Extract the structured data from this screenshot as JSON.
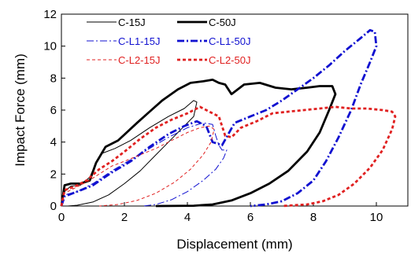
{
  "chart_data": {
    "type": "line",
    "xlabel": "Displacement (mm)",
    "ylabel": "Impact Force (mm)",
    "xlim": [
      0,
      11
    ],
    "ylim": [
      0,
      12
    ],
    "xticks": [
      0,
      2,
      4,
      6,
      8,
      10
    ],
    "yticks": [
      0,
      2,
      4,
      6,
      8,
      10,
      12
    ],
    "grid": false,
    "legend_placement": "top-left",
    "series": [
      {
        "name": "C-15J",
        "color": "#000000",
        "dash": "solid",
        "width": "thin",
        "points": [
          [
            0,
            0
          ],
          [
            0.1,
            0.9
          ],
          [
            0.3,
            1.25
          ],
          [
            0.6,
            1.3
          ],
          [
            0.9,
            1.8
          ],
          [
            1.1,
            2.7
          ],
          [
            1.3,
            3.3
          ],
          [
            1.7,
            3.6
          ],
          [
            2.2,
            4.1
          ],
          [
            2.8,
            4.9
          ],
          [
            3.4,
            5.6
          ],
          [
            3.9,
            6.1
          ],
          [
            4.2,
            6.6
          ],
          [
            4.3,
            6.5
          ],
          [
            4.2,
            5.6
          ],
          [
            3.9,
            5.0
          ],
          [
            3.4,
            4.0
          ],
          [
            3.0,
            3.2
          ],
          [
            2.5,
            2.2
          ],
          [
            2.0,
            1.4
          ],
          [
            1.5,
            0.7
          ],
          [
            1.0,
            0.25
          ],
          [
            0.5,
            0.05
          ],
          [
            0.2,
            0
          ]
        ]
      },
      {
        "name": "C-50J",
        "color": "#000000",
        "dash": "solid",
        "width": "thick",
        "points": [
          [
            0,
            0
          ],
          [
            0.1,
            1.3
          ],
          [
            0.3,
            1.4
          ],
          [
            0.6,
            1.4
          ],
          [
            0.9,
            1.6
          ],
          [
            1.1,
            2.7
          ],
          [
            1.4,
            3.7
          ],
          [
            1.8,
            4.1
          ],
          [
            2.4,
            5.2
          ],
          [
            2.8,
            5.9
          ],
          [
            3.2,
            6.6
          ],
          [
            3.7,
            7.3
          ],
          [
            4.1,
            7.7
          ],
          [
            4.5,
            7.8
          ],
          [
            4.8,
            7.9
          ],
          [
            5.0,
            7.7
          ],
          [
            5.2,
            7.6
          ],
          [
            5.4,
            7.0
          ],
          [
            5.8,
            7.6
          ],
          [
            6.3,
            7.7
          ],
          [
            6.8,
            7.4
          ],
          [
            7.3,
            7.3
          ],
          [
            7.8,
            7.4
          ],
          [
            8.2,
            7.5
          ],
          [
            8.6,
            7.5
          ],
          [
            8.7,
            7.0
          ],
          [
            8.5,
            6.0
          ],
          [
            8.2,
            4.6
          ],
          [
            7.8,
            3.4
          ],
          [
            7.2,
            2.2
          ],
          [
            6.6,
            1.4
          ],
          [
            6.0,
            0.8
          ],
          [
            5.4,
            0.35
          ],
          [
            4.8,
            0.1
          ],
          [
            4.2,
            0.02
          ],
          [
            3.0,
            0
          ]
        ]
      },
      {
        "name": "C-L1-15J",
        "color": "#1010d0",
        "dash": "dashdot",
        "width": "thin",
        "points": [
          [
            0,
            0
          ],
          [
            0.1,
            0.7
          ],
          [
            0.5,
            0.9
          ],
          [
            1.0,
            1.4
          ],
          [
            1.6,
            2.2
          ],
          [
            2.2,
            2.9
          ],
          [
            2.8,
            3.6
          ],
          [
            3.4,
            4.3
          ],
          [
            4.0,
            4.9
          ],
          [
            4.5,
            5.2
          ],
          [
            4.8,
            5.1
          ],
          [
            4.9,
            4.4
          ],
          [
            5.0,
            3.8
          ],
          [
            5.1,
            3.5
          ],
          [
            5.25,
            3.5
          ],
          [
            5.15,
            3.0
          ],
          [
            4.9,
            2.3
          ],
          [
            4.5,
            1.6
          ],
          [
            4.0,
            0.9
          ],
          [
            3.5,
            0.4
          ],
          [
            3.0,
            0.1
          ],
          [
            2.6,
            0
          ]
        ]
      },
      {
        "name": "C-L1-50J",
        "color": "#1010d0",
        "dash": "dashdot",
        "width": "thick",
        "points": [
          [
            0,
            0
          ],
          [
            0.1,
            0.6
          ],
          [
            0.5,
            0.9
          ],
          [
            1.0,
            1.3
          ],
          [
            1.6,
            2.1
          ],
          [
            2.2,
            2.8
          ],
          [
            2.8,
            3.7
          ],
          [
            3.4,
            4.5
          ],
          [
            3.9,
            5.0
          ],
          [
            4.3,
            5.3
          ],
          [
            4.6,
            5.0
          ],
          [
            4.8,
            4.0
          ],
          [
            5.1,
            3.8
          ],
          [
            5.3,
            4.5
          ],
          [
            5.5,
            5.2
          ],
          [
            6.0,
            5.6
          ],
          [
            6.5,
            6.0
          ],
          [
            7.0,
            6.6
          ],
          [
            7.5,
            7.3
          ],
          [
            8.0,
            8.0
          ],
          [
            8.5,
            8.8
          ],
          [
            9.0,
            9.7
          ],
          [
            9.5,
            10.5
          ],
          [
            9.8,
            11.0
          ],
          [
            9.95,
            10.9
          ],
          [
            10.0,
            10.0
          ],
          [
            9.8,
            9.0
          ],
          [
            9.5,
            7.6
          ],
          [
            9.2,
            6.0
          ],
          [
            8.8,
            4.3
          ],
          [
            8.4,
            2.8
          ],
          [
            8.0,
            1.6
          ],
          [
            7.5,
            0.8
          ],
          [
            7.0,
            0.3
          ],
          [
            6.5,
            0.1
          ],
          [
            6.0,
            0
          ]
        ]
      },
      {
        "name": "C-L2-15J",
        "color": "#e02020",
        "dash": "dashed",
        "width": "thin",
        "points": [
          [
            0,
            0
          ],
          [
            0.1,
            0.8
          ],
          [
            0.4,
            1.1
          ],
          [
            0.8,
            1.5
          ],
          [
            1.2,
            2.0
          ],
          [
            1.6,
            2.5
          ],
          [
            2.0,
            2.8
          ],
          [
            2.5,
            3.2
          ],
          [
            3.0,
            3.6
          ],
          [
            3.5,
            4.1
          ],
          [
            4.0,
            4.6
          ],
          [
            4.4,
            4.9
          ],
          [
            4.7,
            5.0
          ],
          [
            4.85,
            4.8
          ],
          [
            4.75,
            4.0
          ],
          [
            4.5,
            3.2
          ],
          [
            4.1,
            2.3
          ],
          [
            3.6,
            1.5
          ],
          [
            3.0,
            0.8
          ],
          [
            2.4,
            0.35
          ],
          [
            1.8,
            0.1
          ],
          [
            1.2,
            0
          ]
        ]
      },
      {
        "name": "C-L2-50J",
        "color": "#e02020",
        "dash": "dashed",
        "width": "thick",
        "points": [
          [
            0,
            0
          ],
          [
            0.1,
            1.0
          ],
          [
            0.4,
            1.2
          ],
          [
            0.8,
            1.6
          ],
          [
            1.2,
            2.3
          ],
          [
            1.6,
            2.8
          ],
          [
            2.0,
            3.4
          ],
          [
            2.5,
            4.2
          ],
          [
            3.0,
            4.9
          ],
          [
            3.5,
            5.4
          ],
          [
            4.0,
            5.8
          ],
          [
            4.4,
            6.2
          ],
          [
            4.8,
            5.8
          ],
          [
            5.0,
            5.6
          ],
          [
            5.2,
            4.4
          ],
          [
            5.4,
            4.3
          ],
          [
            5.7,
            4.9
          ],
          [
            6.2,
            5.3
          ],
          [
            6.7,
            5.8
          ],
          [
            7.2,
            5.9
          ],
          [
            7.7,
            6.0
          ],
          [
            8.2,
            6.1
          ],
          [
            8.7,
            6.2
          ],
          [
            9.2,
            6.1
          ],
          [
            9.7,
            6.1
          ],
          [
            10.2,
            6.0
          ],
          [
            10.5,
            5.9
          ],
          [
            10.6,
            5.6
          ],
          [
            10.5,
            4.8
          ],
          [
            10.2,
            3.5
          ],
          [
            9.8,
            2.4
          ],
          [
            9.3,
            1.4
          ],
          [
            8.8,
            0.7
          ],
          [
            8.3,
            0.3
          ],
          [
            7.8,
            0.1
          ],
          [
            7.0,
            0
          ]
        ]
      }
    ]
  }
}
